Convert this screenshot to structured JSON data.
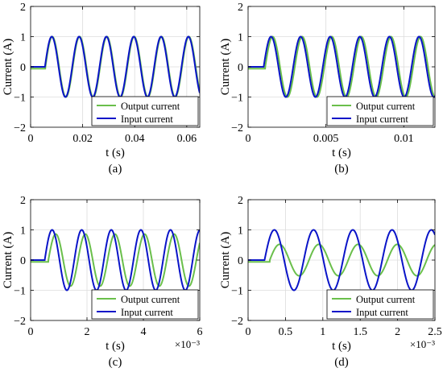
{
  "chart_data": [
    {
      "type": "line",
      "panel_label": "(a)",
      "xlabel": "t (s)",
      "ylabel": "Current (A)",
      "xlim": [
        0,
        0.065
      ],
      "ylim": [
        -2,
        2
      ],
      "xticks": [
        0,
        0.02,
        0.04,
        0.06
      ],
      "xtick_labels": [
        "0",
        "0.02",
        "0.04",
        "0.06"
      ],
      "yticks": [
        -2,
        -1,
        0,
        1,
        2
      ],
      "ytick_labels": [
        "−2",
        "−1",
        "0",
        "1",
        "2"
      ],
      "exponent_label": "",
      "grid": true,
      "legend_position": "bottom-right",
      "series": [
        {
          "name": "Output current",
          "color": "#6abf4b",
          "amplitude": 1.0,
          "onset": 0.0055,
          "period": 0.0105,
          "lag": 0.0002,
          "pre_value": -0.06
        },
        {
          "name": "Input current",
          "color": "#0a14c8",
          "amplitude": 1.0,
          "onset": 0.0055,
          "period": 0.0105,
          "lag": 0,
          "pre_value": 0
        }
      ]
    },
    {
      "type": "line",
      "panel_label": "(b)",
      "xlabel": "t (s)",
      "ylabel": "Current (A)",
      "xlim": [
        0,
        0.012
      ],
      "ylim": [
        -2,
        2
      ],
      "xticks": [
        0,
        0.005,
        0.01
      ],
      "xtick_labels": [
        "0",
        "0.005",
        "0.01"
      ],
      "yticks": [
        -2,
        -1,
        0,
        1,
        2
      ],
      "ytick_labels": [
        "−2",
        "−1",
        "0",
        "1",
        "2"
      ],
      "exponent_label": "",
      "grid": true,
      "legend_position": "bottom-right",
      "series": [
        {
          "name": "Output current",
          "color": "#6abf4b",
          "amplitude": 1.0,
          "onset": 0.001,
          "period": 0.0019,
          "lag": 0.0001,
          "pre_value": -0.06
        },
        {
          "name": "Input current",
          "color": "#0a14c8",
          "amplitude": 1.0,
          "onset": 0.001,
          "period": 0.0019,
          "lag": 0,
          "pre_value": 0
        }
      ]
    },
    {
      "type": "line",
      "panel_label": "(c)",
      "xlabel": "t (s)",
      "ylabel": "Current (A)",
      "xlim": [
        0,
        0.006
      ],
      "ylim": [
        -2,
        2
      ],
      "xticks": [
        0,
        0.002,
        0.004,
        0.006
      ],
      "xtick_labels": [
        "0",
        "2",
        "4",
        "6"
      ],
      "yticks": [
        -2,
        -1,
        0,
        1,
        2
      ],
      "ytick_labels": [
        "−2",
        "−1",
        "0",
        "1",
        "2"
      ],
      "exponent_label": "×10⁻³",
      "grid": true,
      "legend_position": "bottom-right",
      "series": [
        {
          "name": "Output current",
          "color": "#6abf4b",
          "amplitude": 0.86,
          "onset": 0.0005,
          "period": 0.00105,
          "lag": 0.00013,
          "pre_value": -0.06
        },
        {
          "name": "Input current",
          "color": "#0a14c8",
          "amplitude": 1.0,
          "onset": 0.0005,
          "period": 0.00105,
          "lag": 0,
          "pre_value": 0
        }
      ]
    },
    {
      "type": "line",
      "panel_label": "(d)",
      "xlabel": "t (s)",
      "ylabel": "Current (A)",
      "xlim": [
        0,
        0.0025
      ],
      "ylim": [
        -2,
        2
      ],
      "xticks": [
        0,
        0.0005,
        0.001,
        0.0015,
        0.002,
        0.0025
      ],
      "xtick_labels": [
        "0",
        "0.5",
        "1",
        "1.5",
        "2",
        "2.5"
      ],
      "yticks": [
        -2,
        -1,
        0,
        1,
        2
      ],
      "ytick_labels": [
        "−2",
        "−1",
        "0",
        "1",
        "2"
      ],
      "exponent_label": "×10⁻³",
      "grid": true,
      "legend_position": "bottom-right",
      "series": [
        {
          "name": "Output current",
          "color": "#6abf4b",
          "amplitude": 0.52,
          "onset": 0.00022,
          "period": 0.000525,
          "lag": 7e-05,
          "pre_value": -0.06
        },
        {
          "name": "Input current",
          "color": "#0a14c8",
          "amplitude": 1.0,
          "onset": 0.00022,
          "period": 0.000525,
          "lag": 0,
          "pre_value": 0
        }
      ]
    }
  ]
}
